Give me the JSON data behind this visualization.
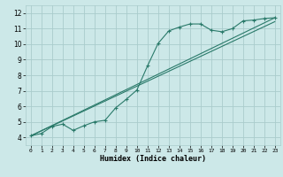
{
  "xlabel": "Humidex (Indice chaleur)",
  "bg_color": "#cce8e8",
  "grid_color": "#aacccc",
  "line_color": "#2a7a6a",
  "xlim": [
    -0.5,
    23.5
  ],
  "ylim": [
    3.5,
    12.5
  ],
  "xticks": [
    0,
    1,
    2,
    3,
    4,
    5,
    6,
    7,
    8,
    9,
    10,
    11,
    12,
    13,
    14,
    15,
    16,
    17,
    18,
    19,
    20,
    21,
    22,
    23
  ],
  "yticks": [
    4,
    5,
    6,
    7,
    8,
    9,
    10,
    11,
    12
  ],
  "curve_x": [
    0,
    1,
    2,
    3,
    4,
    5,
    6,
    7,
    8,
    9,
    10,
    11,
    12,
    13,
    14,
    15,
    16,
    17,
    18,
    19,
    20,
    21,
    22,
    23
  ],
  "curve_y": [
    4.1,
    4.25,
    4.7,
    4.85,
    4.45,
    4.75,
    5.0,
    5.1,
    5.9,
    6.45,
    7.05,
    8.6,
    10.05,
    10.85,
    11.1,
    11.3,
    11.3,
    10.9,
    10.8,
    11.0,
    11.5,
    11.55,
    11.65,
    11.7
  ],
  "line1_x": [
    0,
    23
  ],
  "line1_y": [
    4.1,
    11.7
  ],
  "line2_x": [
    0,
    23
  ],
  "line2_y": [
    4.1,
    11.45
  ]
}
